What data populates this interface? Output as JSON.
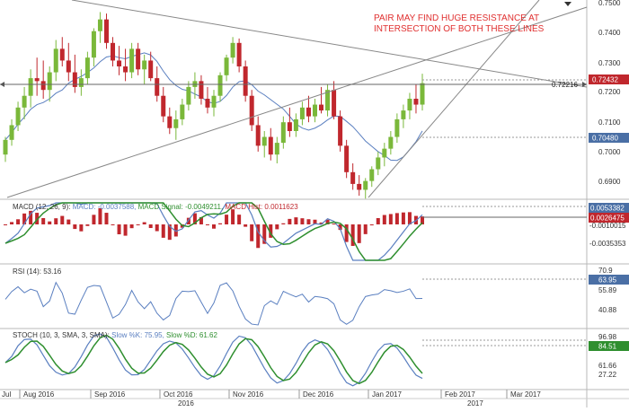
{
  "chart_data": [
    {
      "type": "candlestick",
      "panel": "price",
      "annotation": [
        "PAIR MAY FIND HUGE RESISTANCE AT",
        "INTERSECTION OF BOTH THESE LINES"
      ],
      "y_ticks": [
        "0.7500",
        "0.7400",
        "0.7300",
        "0.7200",
        "0.7100",
        "0.7000",
        "0.6900"
      ],
      "y_range": [
        0.686,
        0.752
      ],
      "price_tags": [
        {
          "label": "0.72432",
          "value": 0.72432,
          "color": "#c0272d"
        },
        {
          "label": "0.72216",
          "value": 0.72216,
          "color": "none"
        },
        {
          "label": "0.70480",
          "value": 0.7048,
          "color": "#4a6fa5"
        }
      ],
      "candles": [
        {
          "date": "Jul 27",
          "o": 0.7,
          "h": 0.706,
          "l": 0.6975,
          "c": 0.705
        },
        {
          "date": "Jul 29",
          "o": 0.705,
          "h": 0.712,
          "l": 0.703,
          "c": 0.71
        },
        {
          "date": "Aug 2",
          "o": 0.71,
          "h": 0.718,
          "l": 0.708,
          "c": 0.716
        },
        {
          "date": "Aug 4",
          "o": 0.716,
          "h": 0.723,
          "l": 0.712,
          "c": 0.72
        },
        {
          "date": "Aug 8",
          "o": 0.72,
          "h": 0.729,
          "l": 0.716,
          "c": 0.726
        },
        {
          "date": "Aug 10",
          "o": 0.726,
          "h": 0.733,
          "l": 0.72,
          "c": 0.725
        },
        {
          "date": "Aug 12",
          "o": 0.725,
          "h": 0.732,
          "l": 0.719,
          "c": 0.722
        },
        {
          "date": "Aug 16",
          "o": 0.722,
          "h": 0.73,
          "l": 0.718,
          "c": 0.728
        },
        {
          "date": "Aug 18",
          "o": 0.728,
          "h": 0.739,
          "l": 0.725,
          "c": 0.736
        },
        {
          "date": "Aug 22",
          "o": 0.736,
          "h": 0.74,
          "l": 0.73,
          "c": 0.732
        },
        {
          "date": "Aug 24",
          "o": 0.732,
          "h": 0.738,
          "l": 0.725,
          "c": 0.728
        },
        {
          "date": "Aug 26",
          "o": 0.728,
          "h": 0.734,
          "l": 0.721,
          "c": 0.723
        },
        {
          "date": "Aug 30",
          "o": 0.723,
          "h": 0.729,
          "l": 0.72,
          "c": 0.726
        },
        {
          "date": "Sep 1",
          "o": 0.726,
          "h": 0.735,
          "l": 0.724,
          "c": 0.733
        },
        {
          "date": "Sep 5",
          "o": 0.733,
          "h": 0.743,
          "l": 0.73,
          "c": 0.742
        },
        {
          "date": "Sep 7",
          "o": 0.742,
          "h": 0.7485,
          "l": 0.738,
          "c": 0.746
        },
        {
          "date": "Sep 9",
          "o": 0.746,
          "h": 0.748,
          "l": 0.736,
          "c": 0.738
        },
        {
          "date": "Sep 13",
          "o": 0.738,
          "h": 0.74,
          "l": 0.73,
          "c": 0.732
        },
        {
          "date": "Sep 15",
          "o": 0.732,
          "h": 0.737,
          "l": 0.727,
          "c": 0.73
        },
        {
          "date": "Sep 19",
          "o": 0.73,
          "h": 0.736,
          "l": 0.725,
          "c": 0.728
        },
        {
          "date": "Sep 21",
          "o": 0.728,
          "h": 0.738,
          "l": 0.726,
          "c": 0.736
        },
        {
          "date": "Sep 23",
          "o": 0.736,
          "h": 0.738,
          "l": 0.727,
          "c": 0.729
        },
        {
          "date": "Sep 27",
          "o": 0.729,
          "h": 0.734,
          "l": 0.724,
          "c": 0.732
        },
        {
          "date": "Sep 29",
          "o": 0.732,
          "h": 0.735,
          "l": 0.725,
          "c": 0.726
        },
        {
          "date": "Oct 3",
          "o": 0.726,
          "h": 0.73,
          "l": 0.718,
          "c": 0.72
        },
        {
          "date": "Oct 5",
          "o": 0.72,
          "h": 0.723,
          "l": 0.711,
          "c": 0.713
        },
        {
          "date": "Oct 7",
          "o": 0.713,
          "h": 0.716,
          "l": 0.707,
          "c": 0.709
        },
        {
          "date": "Oct 11",
          "o": 0.709,
          "h": 0.715,
          "l": 0.705,
          "c": 0.712
        },
        {
          "date": "Oct 13",
          "o": 0.712,
          "h": 0.719,
          "l": 0.71,
          "c": 0.717
        },
        {
          "date": "Oct 17",
          "o": 0.717,
          "h": 0.725,
          "l": 0.715,
          "c": 0.723
        },
        {
          "date": "Oct 19",
          "o": 0.723,
          "h": 0.728,
          "l": 0.719,
          "c": 0.725
        },
        {
          "date": "Oct 21",
          "o": 0.725,
          "h": 0.727,
          "l": 0.717,
          "c": 0.719
        },
        {
          "date": "Oct 25",
          "o": 0.719,
          "h": 0.723,
          "l": 0.714,
          "c": 0.716
        },
        {
          "date": "Oct 27",
          "o": 0.716,
          "h": 0.722,
          "l": 0.713,
          "c": 0.72
        },
        {
          "date": "Oct 31",
          "o": 0.72,
          "h": 0.728,
          "l": 0.718,
          "c": 0.727
        },
        {
          "date": "Nov 2",
          "o": 0.727,
          "h": 0.734,
          "l": 0.725,
          "c": 0.733
        },
        {
          "date": "Nov 4",
          "o": 0.733,
          "h": 0.74,
          "l": 0.731,
          "c": 0.738
        },
        {
          "date": "Nov 8",
          "o": 0.738,
          "h": 0.7395,
          "l": 0.728,
          "c": 0.73
        },
        {
          "date": "Nov 10",
          "o": 0.73,
          "h": 0.732,
          "l": 0.718,
          "c": 0.72
        },
        {
          "date": "Nov 14",
          "o": 0.72,
          "h": 0.722,
          "l": 0.708,
          "c": 0.71
        },
        {
          "date": "Nov 16",
          "o": 0.71,
          "h": 0.713,
          "l": 0.701,
          "c": 0.703
        },
        {
          "date": "Nov 18",
          "o": 0.703,
          "h": 0.708,
          "l": 0.699,
          "c": 0.706
        },
        {
          "date": "Nov 22",
          "o": 0.706,
          "h": 0.709,
          "l": 0.698,
          "c": 0.7
        },
        {
          "date": "Nov 24",
          "o": 0.7,
          "h": 0.706,
          "l": 0.697,
          "c": 0.704
        },
        {
          "date": "Nov 28",
          "o": 0.704,
          "h": 0.713,
          "l": 0.702,
          "c": 0.711
        },
        {
          "date": "Nov 30",
          "o": 0.711,
          "h": 0.716,
          "l": 0.706,
          "c": 0.708
        },
        {
          "date": "Dec 2",
          "o": 0.708,
          "h": 0.714,
          "l": 0.706,
          "c": 0.712
        },
        {
          "date": "Dec 6",
          "o": 0.712,
          "h": 0.718,
          "l": 0.71,
          "c": 0.716
        },
        {
          "date": "Dec 8",
          "o": 0.716,
          "h": 0.72,
          "l": 0.711,
          "c": 0.713
        },
        {
          "date": "Dec 12",
          "o": 0.713,
          "h": 0.719,
          "l": 0.711,
          "c": 0.717
        },
        {
          "date": "Dec 14",
          "o": 0.717,
          "h": 0.723,
          "l": 0.714,
          "c": 0.715
        },
        {
          "date": "Dec 16",
          "o": 0.715,
          "h": 0.724,
          "l": 0.713,
          "c": 0.722
        },
        {
          "date": "Dec 20",
          "o": 0.722,
          "h": 0.725,
          "l": 0.712,
          "c": 0.713
        },
        {
          "date": "Dec 22",
          "o": 0.713,
          "h": 0.715,
          "l": 0.701,
          "c": 0.703
        },
        {
          "date": "Dec 26",
          "o": 0.703,
          "h": 0.705,
          "l": 0.692,
          "c": 0.694
        },
        {
          "date": "Dec 28",
          "o": 0.694,
          "h": 0.697,
          "l": 0.688,
          "c": 0.69
        },
        {
          "date": "Dec 30",
          "o": 0.69,
          "h": 0.693,
          "l": 0.686,
          "c": 0.688
        },
        {
          "date": "Jan 3",
          "o": 0.688,
          "h": 0.692,
          "l": 0.685,
          "c": 0.691
        },
        {
          "date": "Jan 5",
          "o": 0.691,
          "h": 0.696,
          "l": 0.689,
          "c": 0.695
        },
        {
          "date": "Jan 9",
          "o": 0.695,
          "h": 0.701,
          "l": 0.693,
          "c": 0.699
        },
        {
          "date": "Jan 11",
          "o": 0.699,
          "h": 0.704,
          "l": 0.696,
          "c": 0.702
        },
        {
          "date": "Jan 13",
          "o": 0.702,
          "h": 0.708,
          "l": 0.7,
          "c": 0.706
        },
        {
          "date": "Jan 17",
          "o": 0.706,
          "h": 0.714,
          "l": 0.704,
          "c": 0.712
        },
        {
          "date": "Jan 19",
          "o": 0.712,
          "h": 0.717,
          "l": 0.709,
          "c": 0.715
        },
        {
          "date": "Jan 23",
          "o": 0.715,
          "h": 0.721,
          "l": 0.712,
          "c": 0.719
        },
        {
          "date": "Jan 25",
          "o": 0.719,
          "h": 0.724,
          "l": 0.714,
          "c": 0.717
        },
        {
          "date": "Jan 27",
          "o": 0.717,
          "h": 0.7275,
          "l": 0.715,
          "c": 0.7243
        }
      ],
      "moving_average_color": "#5a7fc0",
      "trendlines": "descending resistance, ascending support, steep ascending channel"
    },
    {
      "type": "line",
      "panel": "macd",
      "legend": [
        {
          "text": "MACD (12, 26, 9):",
          "color": "#333333"
        },
        {
          "text": " MACD: -0.0037588,",
          "color": "#5a7fc0"
        },
        {
          "text": " MACD Signal: -0.0049211,",
          "color": "#2f8f2f"
        },
        {
          "text": " MACD Hist: 0.0011623",
          "color": "#c0272d"
        }
      ],
      "y_ticks": [
        "-0.0010015",
        "-0.0035353"
      ],
      "price_tags": [
        {
          "label": "0.0053382",
          "color": "#4a6fa5"
        },
        {
          "label": "0.0026475",
          "color": "#c0272d"
        }
      ],
      "series": [
        {
          "name": "MACD",
          "color": "#5a7fc0"
        },
        {
          "name": "MACD Signal",
          "color": "#2f8f2f"
        },
        {
          "name": "MACD Hist",
          "color": "#c0272d"
        }
      ]
    },
    {
      "type": "line",
      "panel": "rsi",
      "legend": [
        {
          "text": "RSI (14): 53.16",
          "color": "#333333"
        }
      ],
      "y_ticks": [
        "70.9",
        "55.89",
        "40.88"
      ],
      "price_tags": [
        {
          "label": "63.95",
          "color": "#4a6fa5"
        }
      ],
      "series": [
        {
          "name": "RSI",
          "color": "#5a7fc0"
        }
      ]
    },
    {
      "type": "line",
      "panel": "stoch",
      "legend": [
        {
          "text": "STOCH (10, 3, SMA, 3, SMA):",
          "color": "#333333"
        },
        {
          "text": " Slow %K: 75.95,",
          "color": "#5a7fc0"
        },
        {
          "text": " Slow %D: 61.62",
          "color": "#2f8f2f"
        }
      ],
      "y_ticks": [
        "96.98",
        "61.66",
        "27.22"
      ],
      "price_tags": [
        {
          "label": "84.51",
          "color": "#2f8f2f"
        }
      ],
      "series": [
        {
          "name": "Slow %K",
          "color": "#5a7fc0"
        },
        {
          "name": "Slow %D",
          "color": "#2f8f2f"
        }
      ]
    }
  ],
  "x_axis": {
    "months": [
      "Jul",
      "Aug 2016",
      "Sep 2016",
      "Oct 2016",
      "Nov 2016",
      "Dec 2016",
      "Jan 2017",
      "Feb 2017",
      "Mar 2017"
    ],
    "years": [
      "2016",
      "2017"
    ]
  },
  "colors": {
    "bull": "#7ab83a",
    "bear": "#c0272d",
    "trendline": "#888888"
  }
}
